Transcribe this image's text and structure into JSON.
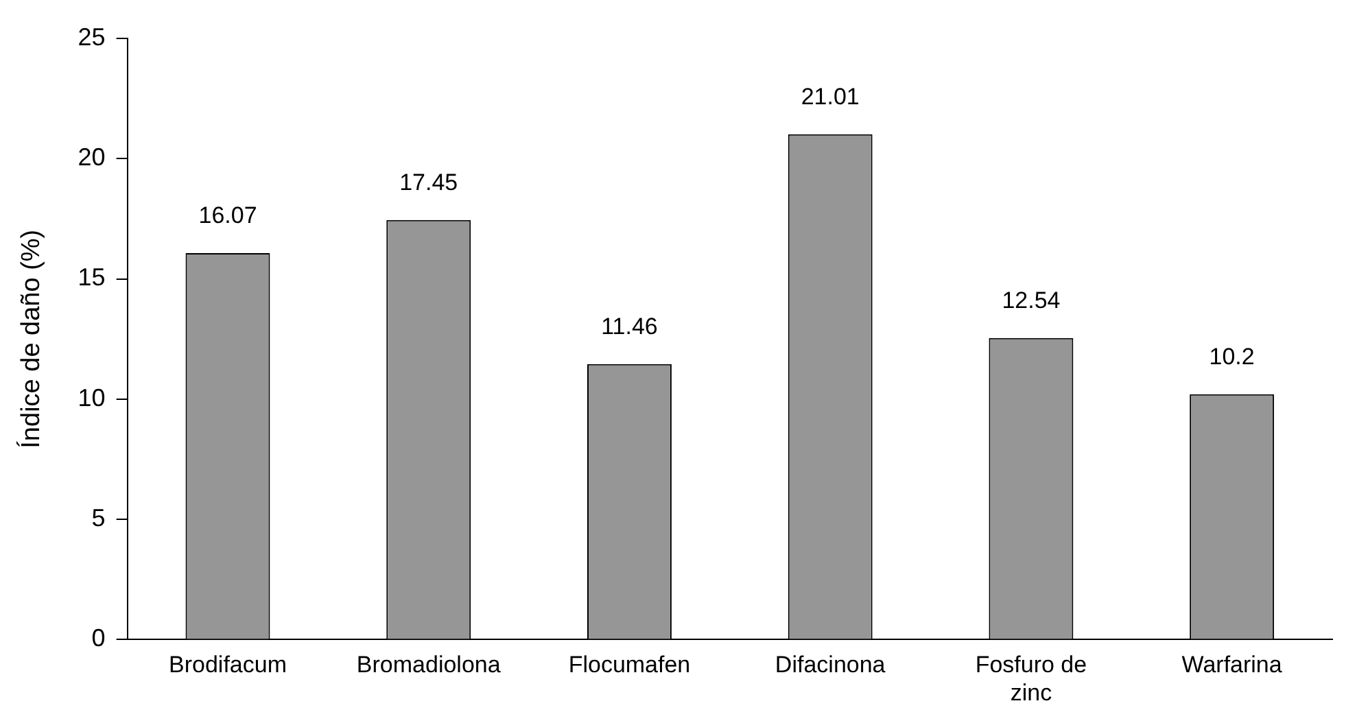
{
  "chart_data": {
    "type": "bar",
    "ylabel": "Índice de daño (%)",
    "categories": [
      "Brodifacum",
      "Bromadiolona",
      "Flocumafen",
      "Difacinona",
      "Fosfuro de zinc",
      "Warfarina"
    ],
    "values": [
      16.07,
      17.45,
      11.46,
      21.01,
      12.54,
      10.2
    ],
    "color": "#969696",
    "ylim": [
      0,
      25
    ],
    "yticks": [
      0,
      5,
      10,
      15,
      20,
      25
    ],
    "grid": false,
    "legend": false,
    "data_labels": true
  }
}
